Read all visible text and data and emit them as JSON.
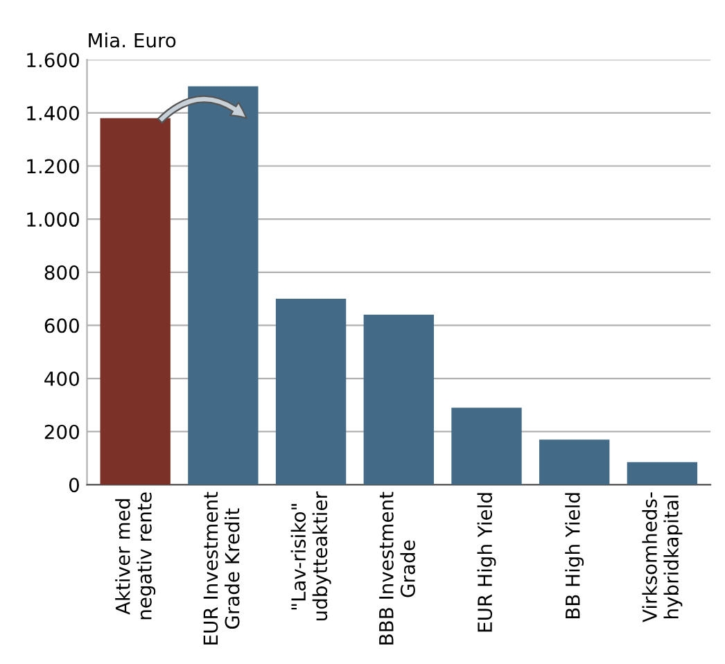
{
  "chart_data": {
    "type": "bar",
    "ylabel": "Mia. Euro",
    "categories": [
      "Aktiver med\nnegativ rente",
      "EUR Investment\nGrade Kredit",
      "\"Lav-risiko\"\nudbytteaktier",
      "BBB Investment\nGrade",
      "EUR High Yield",
      "BB High Yield",
      "Virksomheds-\nhybridkapital"
    ],
    "values": [
      1380,
      1500,
      700,
      640,
      290,
      170,
      85
    ],
    "colors": [
      "#7b3128",
      "#436b87",
      "#436b87",
      "#436b87",
      "#436b87",
      "#436b87",
      "#436b87"
    ],
    "ylim": [
      0,
      1600
    ],
    "yticks": [
      0,
      200,
      400,
      600,
      800,
      {
        "value": 1000,
        "label": "1.000"
      },
      {
        "value": 1200,
        "label": "1.200"
      },
      {
        "value": 1400,
        "label": "1.400"
      },
      {
        "value": 1600,
        "label": "1.600"
      }
    ],
    "grid": "y",
    "legend": false
  }
}
